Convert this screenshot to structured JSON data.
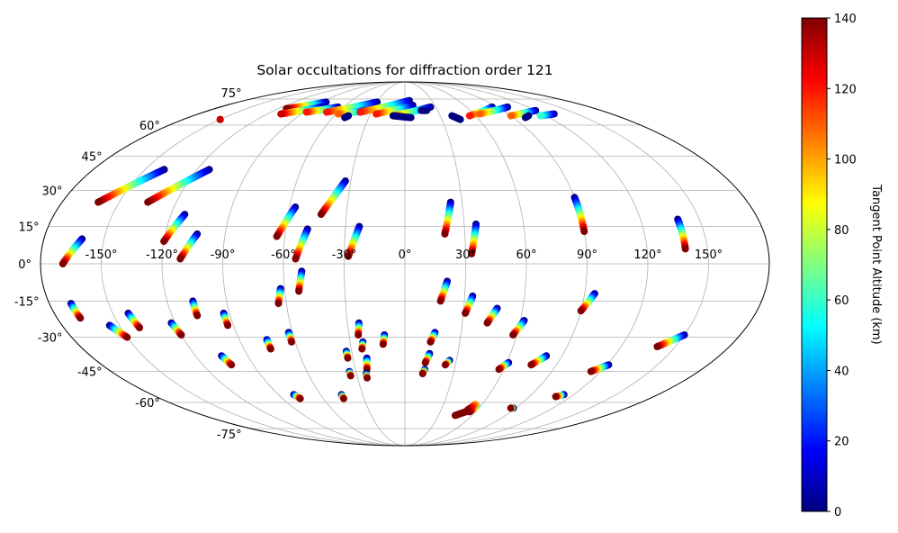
{
  "chart_data": {
    "type": "scatter",
    "title": "Solar occultations for diffraction order 121",
    "projection": "mollweide",
    "grid": true,
    "longitude_ticks": [
      "-150°",
      "-120°",
      "-90°",
      "-60°",
      "-30°",
      "0°",
      "30°",
      "60°",
      "90°",
      "120°",
      "150°"
    ],
    "latitude_ticks": [
      "75°",
      "60°",
      "45°",
      "30°",
      "15°",
      "0°",
      "-15°",
      "-30°",
      "-45°",
      "-60°",
      "-75°"
    ],
    "colorbar": {
      "label": "Tangent Point Altitude (km)",
      "min": 0,
      "max": 140,
      "ticks": [
        "0",
        "20",
        "40",
        "60",
        "80",
        "100",
        "120",
        "140"
      ],
      "colormap": "jet"
    },
    "tracks": [
      {
        "lon0": -169,
        "lat0": 0,
        "lon1": -161,
        "lat1": 10,
        "alt0": 140,
        "alt1": 0
      },
      {
        "lon0": -161,
        "lat0": 25,
        "lon1": -139,
        "lat1": 39,
        "alt0": 140,
        "alt1": 0
      },
      {
        "lon0": -135,
        "lat0": 25,
        "lon1": -113,
        "lat1": 39,
        "alt0": 140,
        "alt1": 0
      },
      {
        "lon0": -120,
        "lat0": 9,
        "lon1": -113,
        "lat1": 20,
        "alt0": 140,
        "alt1": 0
      },
      {
        "lon0": -111,
        "lat0": 2,
        "lon1": -104,
        "lat1": 12,
        "alt0": 140,
        "alt1": 0
      },
      {
        "lon0": -64,
        "lat0": 11,
        "lon1": -57,
        "lat1": 23,
        "alt0": 140,
        "alt1": 0
      },
      {
        "lon0": -54,
        "lat0": 2,
        "lon1": -49,
        "lat1": 14,
        "alt0": 140,
        "alt1": 0
      },
      {
        "lon0": -43,
        "lat0": 20,
        "lon1": -33,
        "lat1": 34,
        "alt0": 140,
        "alt1": 0
      },
      {
        "lon0": -28,
        "lat0": 3,
        "lon1": -23,
        "lat1": 15,
        "alt0": 140,
        "alt1": 0
      },
      {
        "lon0": 20,
        "lat0": 12,
        "lon1": 24,
        "lat1": 25,
        "alt0": 140,
        "alt1": 0
      },
      {
        "lon0": 33,
        "lat0": 4,
        "lon1": 36,
        "lat1": 16,
        "alt0": 140,
        "alt1": 0
      },
      {
        "lon0": 90,
        "lat0": 13,
        "lon1": 90,
        "lat1": 27,
        "alt0": 140,
        "alt1": 0
      },
      {
        "lon0": 139,
        "lat0": 6,
        "lon1": 139,
        "lat1": 18,
        "alt0": 140,
        "alt1": 0
      },
      {
        "lon0": -168,
        "lat0": -22,
        "lon1": -169,
        "lat1": -16,
        "alt0": 140,
        "alt1": 0
      },
      {
        "lon0": -150,
        "lat0": -30,
        "lon1": -155,
        "lat1": -25,
        "alt0": 140,
        "alt1": 0
      },
      {
        "lon0": -140,
        "lat0": -26,
        "lon1": -142,
        "lat1": -20,
        "alt0": 140,
        "alt1": 0
      },
      {
        "lon0": -120,
        "lat0": -29,
        "lon1": -122,
        "lat1": -24,
        "alt0": 140,
        "alt1": 0
      },
      {
        "lon0": -107,
        "lat0": -21,
        "lon1": -107,
        "lat1": -15,
        "alt0": 140,
        "alt1": 0
      },
      {
        "lon0": -103,
        "lat0": -42,
        "lon1": -105,
        "lat1": -38,
        "alt0": 140,
        "alt1": 0
      },
      {
        "lon0": -93,
        "lat0": -25,
        "lon1": -93,
        "lat1": -20,
        "alt0": 140,
        "alt1": 0
      },
      {
        "lon0": -75,
        "lat0": -35,
        "lon1": -75,
        "lat1": -31,
        "alt0": 140,
        "alt1": 0
      },
      {
        "lon0": -77,
        "lat0": -58,
        "lon1": -79,
        "lat1": -56,
        "alt0": 140,
        "alt1": 0
      },
      {
        "lon0": -64,
        "lat0": -16,
        "lon1": -62,
        "lat1": -10,
        "alt0": 140,
        "alt1": 0
      },
      {
        "lon0": -62,
        "lat0": -32,
        "lon1": -62,
        "lat1": -28,
        "alt0": 140,
        "alt1": 0
      },
      {
        "lon0": -53,
        "lat0": -11,
        "lon1": -51,
        "lat1": -3,
        "alt0": 140,
        "alt1": 0
      },
      {
        "lon0": -45,
        "lat0": -58,
        "lon1": -45,
        "lat1": -56,
        "alt0": 140,
        "alt1": 0
      },
      {
        "lon0": -34,
        "lat0": -47,
        "lon1": -34,
        "lat1": -45,
        "alt0": 140,
        "alt1": 0
      },
      {
        "lon0": -33,
        "lat0": -39,
        "lon1": -33,
        "lat1": -36,
        "alt0": 140,
        "alt1": 0
      },
      {
        "lon0": -25,
        "lat0": -29,
        "lon1": -24,
        "lat1": -24,
        "alt0": 140,
        "alt1": 0
      },
      {
        "lon0": -23,
        "lat0": -44,
        "lon1": -22,
        "lat1": -39,
        "alt0": 140,
        "alt1": 0
      },
      {
        "lon0": -24,
        "lat0": -35,
        "lon1": -23,
        "lat1": -32,
        "alt0": 140,
        "alt1": 0
      },
      {
        "lon0": -24,
        "lat0": -48,
        "lon1": -24,
        "lat1": -46,
        "alt0": 140,
        "alt1": 0
      },
      {
        "lon0": -12,
        "lat0": -33,
        "lon1": -11,
        "lat1": -29,
        "alt0": 140,
        "alt1": 0
      },
      {
        "lon0": 11,
        "lat0": -46,
        "lon1": 12,
        "lat1": -44,
        "alt0": 140,
        "alt1": 0
      },
      {
        "lon0": 12,
        "lat0": -41,
        "lon1": 14,
        "lat1": -37,
        "alt0": 140,
        "alt1": 0
      },
      {
        "lon0": 14,
        "lat0": -32,
        "lon1": 16,
        "lat1": -28,
        "alt0": 140,
        "alt1": 0
      },
      {
        "lon0": 18,
        "lat0": -15,
        "lon1": 21,
        "lat1": -7,
        "alt0": 140,
        "alt1": 0
      },
      {
        "lon0": 24,
        "lat0": -42,
        "lon1": 26,
        "lat1": -40,
        "alt0": 140,
        "alt1": 0
      },
      {
        "lon0": 31,
        "lat0": -20,
        "lon1": 34,
        "lat1": -13,
        "alt0": 140,
        "alt1": 0
      },
      {
        "lon0": 43,
        "lat0": -24,
        "lon1": 47,
        "lat1": -18,
        "alt0": 140,
        "alt1": 0
      },
      {
        "lon0": 45,
        "lat0": -67,
        "lon1": 55,
        "lat1": -64,
        "alt0": 140,
        "alt1": 140
      },
      {
        "lon0": 55,
        "lat0": -65,
        "lon1": 57,
        "lat1": -62,
        "alt0": 140,
        "alt1": 60
      },
      {
        "lon0": 52,
        "lat0": -64,
        "lon1": 55,
        "lat1": -61,
        "alt0": 140,
        "alt1": 100
      },
      {
        "lon0": 57,
        "lat0": -44,
        "lon1": 61,
        "lat1": -41,
        "alt0": 140,
        "alt1": 0
      },
      {
        "lon0": 58,
        "lat0": -29,
        "lon1": 62,
        "lat1": -23,
        "alt0": 140,
        "alt1": 0
      },
      {
        "lon0": 75,
        "lat0": -42,
        "lon1": 81,
        "lat1": -38,
        "alt0": 140,
        "alt1": 0
      },
      {
        "lon0": 86,
        "lat0": -63,
        "lon1": 88,
        "lat1": -63,
        "alt0": 140,
        "alt1": 0
      },
      {
        "lon0": 90,
        "lat0": -19,
        "lon1": 95,
        "lat1": -12,
        "alt0": 140,
        "alt1": 0
      },
      {
        "lon0": 109,
        "lat0": -57,
        "lon1": 113,
        "lat1": -56,
        "alt0": 140,
        "alt1": 0
      },
      {
        "lon0": 114,
        "lat0": -45,
        "lon1": 121,
        "lat1": -42,
        "alt0": 140,
        "alt1": 0
      },
      {
        "lon0": 140,
        "lat0": -34,
        "lon1": 150,
        "lat1": -29,
        "alt0": 140,
        "alt1": 0
      },
      {
        "lon0": -150,
        "lat0": 63,
        "lon1": -150,
        "lat1": 63,
        "alt0": 130,
        "alt1": 130
      },
      {
        "lon0": -112,
        "lat0": 69,
        "lon1": -85,
        "lat1": 73,
        "alt0": 140,
        "alt1": 0
      },
      {
        "lon0": -108,
        "lat0": 66,
        "lon1": -80,
        "lat1": 70,
        "alt0": 130,
        "alt1": 0
      },
      {
        "lon0": -88,
        "lat0": 67,
        "lon1": -65,
        "lat1": 70,
        "alt0": 120,
        "alt1": 0
      },
      {
        "lon0": -70,
        "lat0": 67,
        "lon1": -30,
        "lat1": 73,
        "alt0": 120,
        "alt1": 0
      },
      {
        "lon0": -58,
        "lat0": 66,
        "lon1": -35,
        "lat1": 68,
        "alt0": 110,
        "alt1": 0
      },
      {
        "lon0": -40,
        "lat0": 67,
        "lon1": 5,
        "lat1": 74,
        "alt0": 120,
        "alt1": 0
      },
      {
        "lon0": -25,
        "lat0": 66,
        "lon1": 8,
        "lat1": 71,
        "alt0": 120,
        "alt1": 0
      },
      {
        "lon0": -10,
        "lat0": 65,
        "lon1": 25,
        "lat1": 70,
        "alt0": 110,
        "alt1": 0
      },
      {
        "lon0": 20,
        "lat0": 68,
        "lon1": 15,
        "lat1": 68,
        "alt0": 0,
        "alt1": 0
      },
      {
        "lon0": 5,
        "lat0": 64,
        "lon1": -10,
        "lat1": 65,
        "alt0": 0,
        "alt1": 0
      },
      {
        "lon0": 55,
        "lat0": 65,
        "lon1": 85,
        "lat1": 70,
        "alt0": 120,
        "alt1": 0
      },
      {
        "lon0": 65,
        "lat0": 66,
        "lon1": 100,
        "lat1": 70,
        "alt0": 110,
        "alt1": 0
      },
      {
        "lon0": 90,
        "lat0": 65,
        "lon1": 120,
        "lat1": 68,
        "alt0": 110,
        "alt1": 0
      },
      {
        "lon0": 115,
        "lat0": 65,
        "lon1": 130,
        "lat1": 66,
        "alt0": 60,
        "alt1": 0
      },
      {
        "lon0": 100,
        "lat0": 64,
        "lon1": 105,
        "lat1": 65,
        "alt0": 0,
        "alt1": 0
      },
      {
        "lon0": 40,
        "lat0": 65,
        "lon1": 45,
        "lat1": 63,
        "alt0": 0,
        "alt1": 0
      },
      {
        "lon0": -50,
        "lat0": 64,
        "lon1": -48,
        "lat1": 65,
        "alt0": 0,
        "alt1": 0
      }
    ]
  }
}
